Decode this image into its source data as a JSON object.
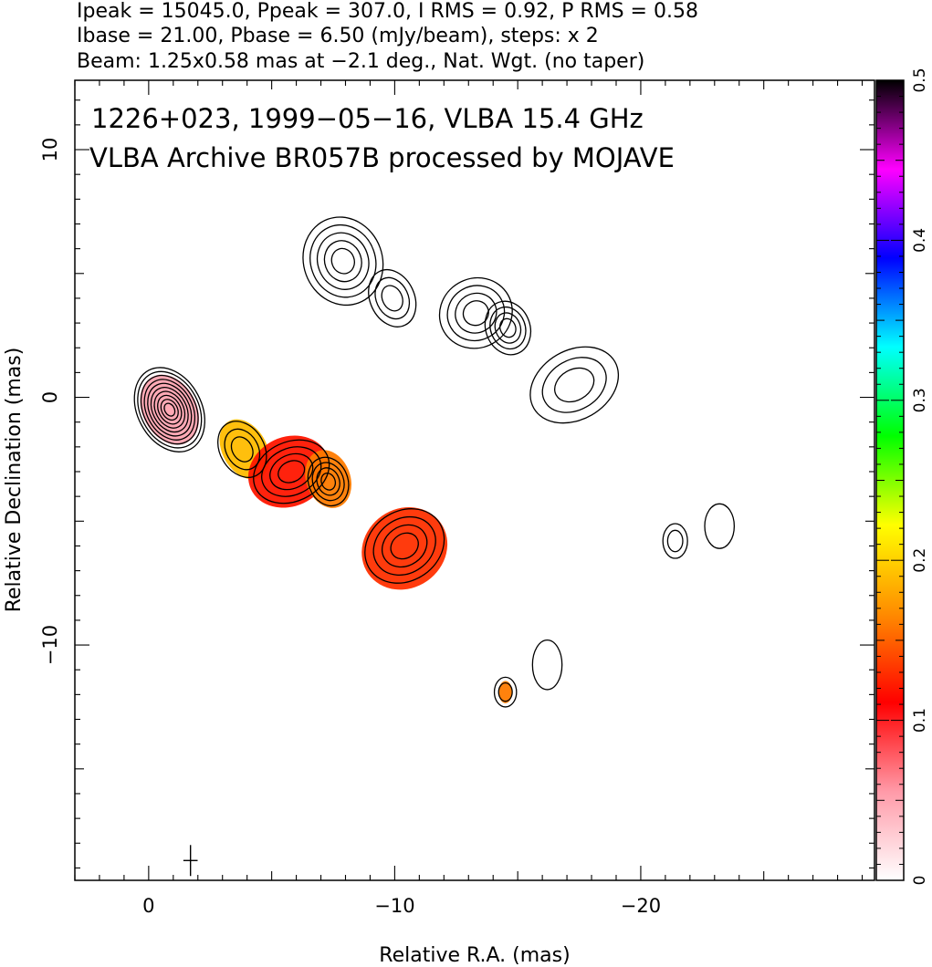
{
  "header": {
    "line1": "Ipeak = 15045.0, Ppeak = 307.0, I RMS = 0.92, P RMS = 0.58",
    "line2": "Ibase = 21.00, Pbase = 6.50 (mJy/beam), steps: x 2",
    "line3": "Beam: 1.25x0.58 mas at −2.1 deg., Nat. Wgt. (no taper)"
  },
  "chart_data": {
    "type": "heatmap",
    "title": "1226+023, 1999−05−16, VLBA 15.4 GHz",
    "subtitle": "VLBA Archive BR057B processed by MOJAVE",
    "xlabel": "Relative R.A. (mas)",
    "ylabel": "Relative Declination (mas)",
    "xlim": [
      3,
      -29.5
    ],
    "ylim": [
      -19.5,
      12.8
    ],
    "x_major_ticks": [
      0,
      -10,
      -20
    ],
    "x_tick_labels": [
      "0",
      "−10",
      "−20"
    ],
    "y_major_ticks": [
      10,
      0,
      -10
    ],
    "y_tick_labels": [
      "10",
      "0",
      "−10"
    ],
    "colorbar": {
      "range": [
        0,
        0.5
      ],
      "ticks": [
        0,
        0.1,
        0.2,
        0.3,
        0.4,
        0.5
      ],
      "tick_labels": [
        "0",
        "0.1",
        "0.2",
        "0.3",
        "0.4",
        "0.5"
      ],
      "colors": [
        "#ffffff",
        "#ff9aa8",
        "#ff0000",
        "#ff8c00",
        "#ffff00",
        "#00ff00",
        "#00ffff",
        "#0000ff",
        "#ff00ff",
        "#000000"
      ]
    },
    "contour_base_mjy_per_beam": 21.0,
    "contour_step_factor": 2,
    "intensity_components": [
      {
        "x": -0.85,
        "y": -0.5,
        "rx": 1.3,
        "ry": 1.8,
        "angle": -28,
        "levels": 10
      },
      {
        "x": -3.8,
        "y": -2.1,
        "rx": 0.9,
        "ry": 1.2,
        "angle": -30,
        "levels": 3
      },
      {
        "x": -5.8,
        "y": -3.0,
        "rx": 1.6,
        "ry": 1.2,
        "angle": -25,
        "levels": 4
      },
      {
        "x": -7.3,
        "y": -3.4,
        "rx": 0.8,
        "ry": 1.0,
        "angle": -20,
        "levels": 4
      },
      {
        "x": -10.4,
        "y": -6.0,
        "rx": 1.7,
        "ry": 1.4,
        "angle": -35,
        "levels": 4
      },
      {
        "x": -7.9,
        "y": 5.5,
        "rx": 1.6,
        "ry": 1.8,
        "angle": -20,
        "levels": 5
      },
      {
        "x": -9.9,
        "y": 4.0,
        "rx": 0.9,
        "ry": 1.2,
        "angle": -25,
        "levels": 3
      },
      {
        "x": -13.3,
        "y": 3.4,
        "rx": 1.5,
        "ry": 1.4,
        "angle": -30,
        "levels": 4
      },
      {
        "x": -14.6,
        "y": 2.8,
        "rx": 0.9,
        "ry": 1.1,
        "angle": -20,
        "levels": 4
      },
      {
        "x": -17.3,
        "y": 0.5,
        "rx": 1.9,
        "ry": 1.4,
        "angle": -30,
        "levels": 3
      },
      {
        "x": -21.4,
        "y": -5.8,
        "rx": 0.5,
        "ry": 0.7,
        "angle": 0,
        "levels": 2
      },
      {
        "x": -14.5,
        "y": -11.9,
        "rx": 0.45,
        "ry": 0.6,
        "angle": 0,
        "levels": 2
      },
      {
        "x": -16.2,
        "y": -10.8,
        "rx": 0.6,
        "ry": 1.0,
        "angle": 0,
        "levels": 1
      },
      {
        "x": -23.2,
        "y": -5.2,
        "rx": 0.6,
        "ry": 0.9,
        "angle": 0,
        "levels": 1
      }
    ],
    "polarization_color_patches": [
      {
        "x": -0.85,
        "y": -0.5,
        "rx": 1.1,
        "ry": 1.5,
        "angle": -28,
        "value": 0.05
      },
      {
        "x": -3.9,
        "y": -2.1,
        "rx": 0.9,
        "ry": 1.3,
        "angle": -30,
        "value": 0.19
      },
      {
        "x": -5.7,
        "y": -3.0,
        "rx": 1.7,
        "ry": 1.4,
        "angle": -25,
        "value": 0.12
      },
      {
        "x": -7.3,
        "y": -3.3,
        "rx": 0.9,
        "ry": 1.2,
        "angle": -20,
        "value": 0.16
      },
      {
        "x": -10.4,
        "y": -6.1,
        "rx": 1.8,
        "ry": 1.6,
        "angle": -35,
        "value": 0.13
      },
      {
        "x": -14.5,
        "y": -11.9,
        "rx": 0.28,
        "ry": 0.45,
        "angle": 0,
        "value": 0.16
      }
    ],
    "beam": {
      "x": -1.7,
      "y": -18.7,
      "major_mas": 1.25,
      "minor_mas": 0.58,
      "pa_deg": -2.1
    }
  }
}
